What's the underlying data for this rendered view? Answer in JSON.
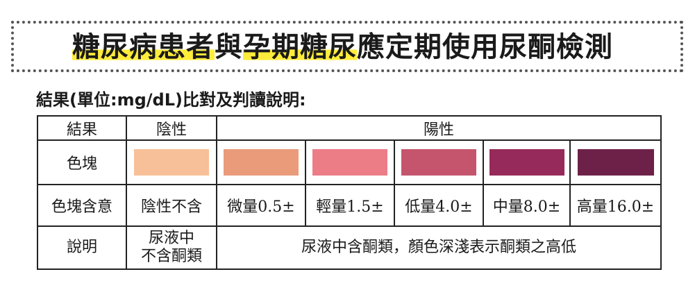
{
  "title": {
    "parts": [
      {
        "text": "糖尿病患者",
        "highlight": true
      },
      {
        "text": "與",
        "highlight": false
      },
      {
        "text": "孕期糖尿",
        "highlight": true
      },
      {
        "text": "應定期使用尿酮檢測",
        "highlight": false
      }
    ]
  },
  "subtitle": "結果(單位:mg/dL)比對及判讀說明:",
  "table": {
    "headers": {
      "result": "結果",
      "negative": "陰性",
      "positive": "陽性"
    },
    "swatch_row_label": "色塊",
    "swatch_colors": [
      "#f8c098",
      "#e99b7a",
      "#ec7c86",
      "#c4556d",
      "#962a5a",
      "#6e2148"
    ],
    "meaning_row_label": "色塊含意",
    "meanings": [
      "陰性不含",
      "微量0.5±",
      "輕量1.5±",
      "低量4.0±",
      "中量8.0±",
      "高量16.0±"
    ],
    "desc_row_label": "說明",
    "negative_desc_line1": "尿液中",
    "negative_desc_line2": "不含酮類",
    "positive_desc": "尿液中含酮類，顏色深淺表示酮類之高低"
  },
  "colors": {
    "highlight": "#ffec3a",
    "border": "#222222"
  }
}
